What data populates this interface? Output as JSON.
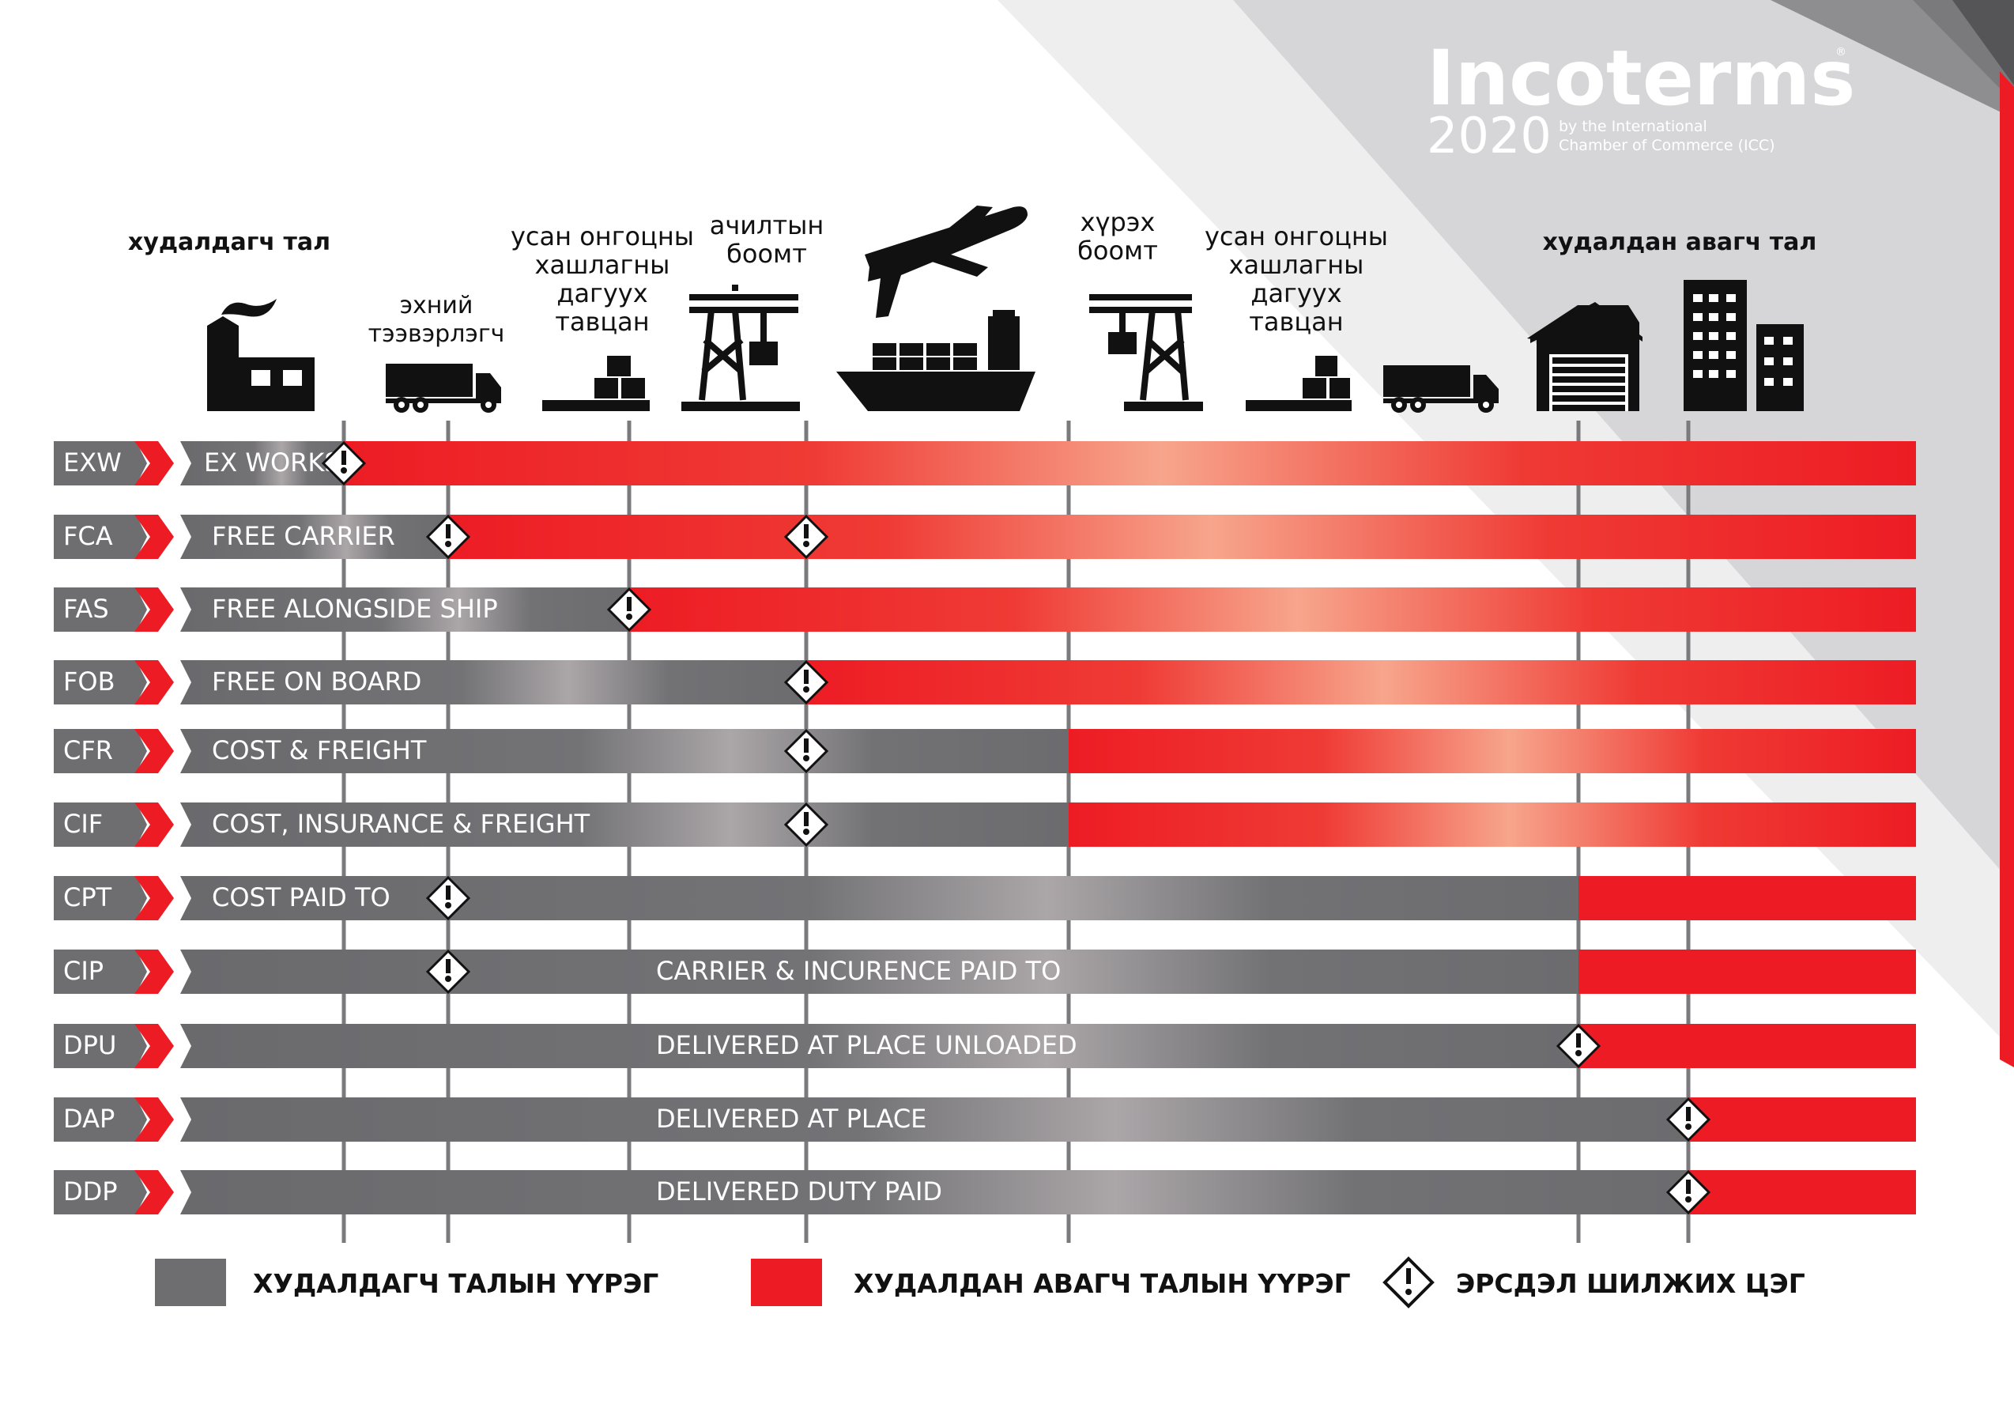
{
  "brand": {
    "logo_text": "Incoterms",
    "year": "2020",
    "byline_1": "by the International",
    "byline_2": "Chamber of Commerce (ICC)",
    "registered": "®"
  },
  "colors": {
    "seller": "#6e6e71",
    "buyer": "#ed1c24",
    "text_dark": "#111111",
    "white": "#ffffff"
  },
  "columns": {
    "seller_side": "худалдагч тал",
    "first_carrier": [
      "эхний",
      "тээвэрлэгч"
    ],
    "waterway_dock_1": [
      "усан онгоцны",
      "хашлагны",
      "дагуух",
      "тавцан"
    ],
    "loading_port": [
      "ачилтын",
      "боомт"
    ],
    "arrival_port": [
      "хүрэх",
      "боомт"
    ],
    "waterway_dock_2": [
      "усан онгоцны",
      "хашлагны",
      "дагуух",
      "тавцан"
    ],
    "buyer_side": "худалдан авагч тал"
  },
  "icons": [
    "factory-icon",
    "truck-icon",
    "pallet-boxes-icon",
    "port-crane-icon",
    "airplane-icon",
    "cargo-ship-icon",
    "port-crane-icon",
    "pallet-boxes-icon",
    "truck-icon",
    "warehouse-icon",
    "city-buildings-icon"
  ],
  "terms": [
    {
      "code": "EXW",
      "name": "EX WORKS",
      "risk_points": [
        "seller premises"
      ],
      "buyer_from": "seller premises"
    },
    {
      "code": "FCA",
      "name": "FREE CARRIER",
      "risk_points": [
        "first carrier",
        "loading port"
      ],
      "buyer_from": "first carrier"
    },
    {
      "code": "FAS",
      "name": "FREE ALONGSIDE SHIP",
      "risk_points": [
        "quay"
      ],
      "buyer_from": "quay"
    },
    {
      "code": "FOB",
      "name": "FREE ON BOARD",
      "risk_points": [
        "loading port"
      ],
      "buyer_from": "loading port"
    },
    {
      "code": "CFR",
      "name": "COST & FREIGHT",
      "risk_points": [
        "loading port"
      ],
      "buyer_from": "arrival port"
    },
    {
      "code": "CIF",
      "name": "COST, INSURANCE & FREIGHT",
      "risk_points": [
        "loading port"
      ],
      "buyer_from": "arrival port"
    },
    {
      "code": "CPT",
      "name": "COST PAID TO",
      "risk_points": [
        "first carrier"
      ],
      "buyer_from": "buyer warehouse"
    },
    {
      "code": "CIP",
      "name": "CARRIER & INCURENCE PAID TO",
      "risk_points": [
        "first carrier"
      ],
      "buyer_from": "buyer warehouse"
    },
    {
      "code": "DPU",
      "name": "DELIVERED AT PLACE UNLOADED",
      "risk_points": [
        "buyer warehouse"
      ],
      "buyer_from": "buyer warehouse"
    },
    {
      "code": "DAP",
      "name": "DELIVERED AT PLACE",
      "risk_points": [
        "buyer premises"
      ],
      "buyer_from": "buyer premises"
    },
    {
      "code": "DDP",
      "name": "DELIVERED DUTY PAID",
      "risk_points": [
        "buyer premises"
      ],
      "buyer_from": "buyer premises"
    }
  ],
  "legend": {
    "seller": "ХУДАЛДАГЧ ТАЛЫН ҮҮРЭГ",
    "buyer": "ХУДАЛДАН АВАГЧ ТАЛЫН ҮҮРЭГ",
    "risk": "ЭРСДЭЛ ШИЛЖИХ ЦЭГ"
  }
}
